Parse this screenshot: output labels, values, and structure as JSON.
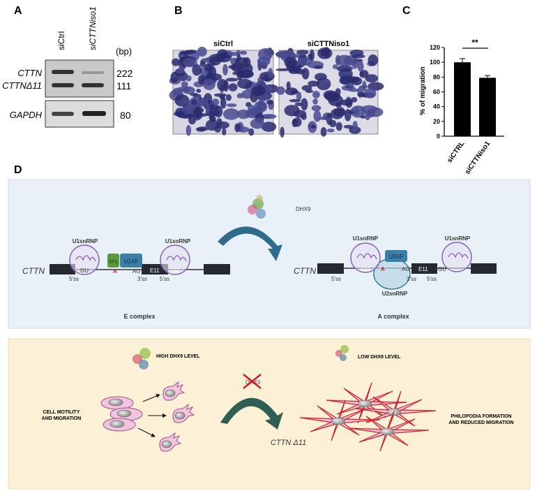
{
  "panel_labels": {
    "a": "A",
    "b": "B",
    "c": "C",
    "d": "D"
  },
  "panel_a": {
    "lanes": [
      "siCtrl",
      "siCTTNiso1"
    ],
    "unit": "(bp)",
    "bands": [
      {
        "name": "CTTN",
        "size": "222"
      },
      {
        "name": "CTTNΔ11",
        "size": "111"
      },
      {
        "name": "GAPDH",
        "size": "80"
      }
    ]
  },
  "panel_b": {
    "titles": [
      "siCtrl",
      "siCTTNiso1"
    ]
  },
  "chart_data": {
    "type": "bar",
    "categories": [
      "siCTRL",
      "siCTTNiso1"
    ],
    "values": [
      100,
      79
    ],
    "errors": [
      5,
      3
    ],
    "ylabel": "% of migration",
    "ylim": [
      0,
      120
    ],
    "yticks": [
      0,
      20,
      40,
      60,
      80,
      100,
      120
    ],
    "significance": "**",
    "grid": false,
    "bar_color": "#000000"
  },
  "panel_d": {
    "top": {
      "background": "#e8f0f8",
      "gene": "CTTN",
      "u1": "U1snRNP",
      "u2": "U2snRNP",
      "sf1": "SF1",
      "u2af": "U2AF",
      "gu": "GU",
      "branch_a": "A",
      "ag": "AG",
      "exon": "E11",
      "ss5": "5'ss",
      "ss3": "3'ss",
      "dhx9": "DHX9",
      "e_complex": "E  complex",
      "a_complex": "A complex"
    },
    "bottom": {
      "background": "#fcf0d6",
      "high": "HIGH DHX9 LEVEL",
      "low": "LOW DHX9 LEVEL",
      "left_caption": [
        "CELL MOTILITY",
        "AND  MIGRATION"
      ],
      "right_caption": [
        "PHILOPODIA FORMATION",
        "AND REDUCED MIGRATION"
      ],
      "crossed": "DHX9",
      "isoform": "CTTN Δ11"
    }
  }
}
